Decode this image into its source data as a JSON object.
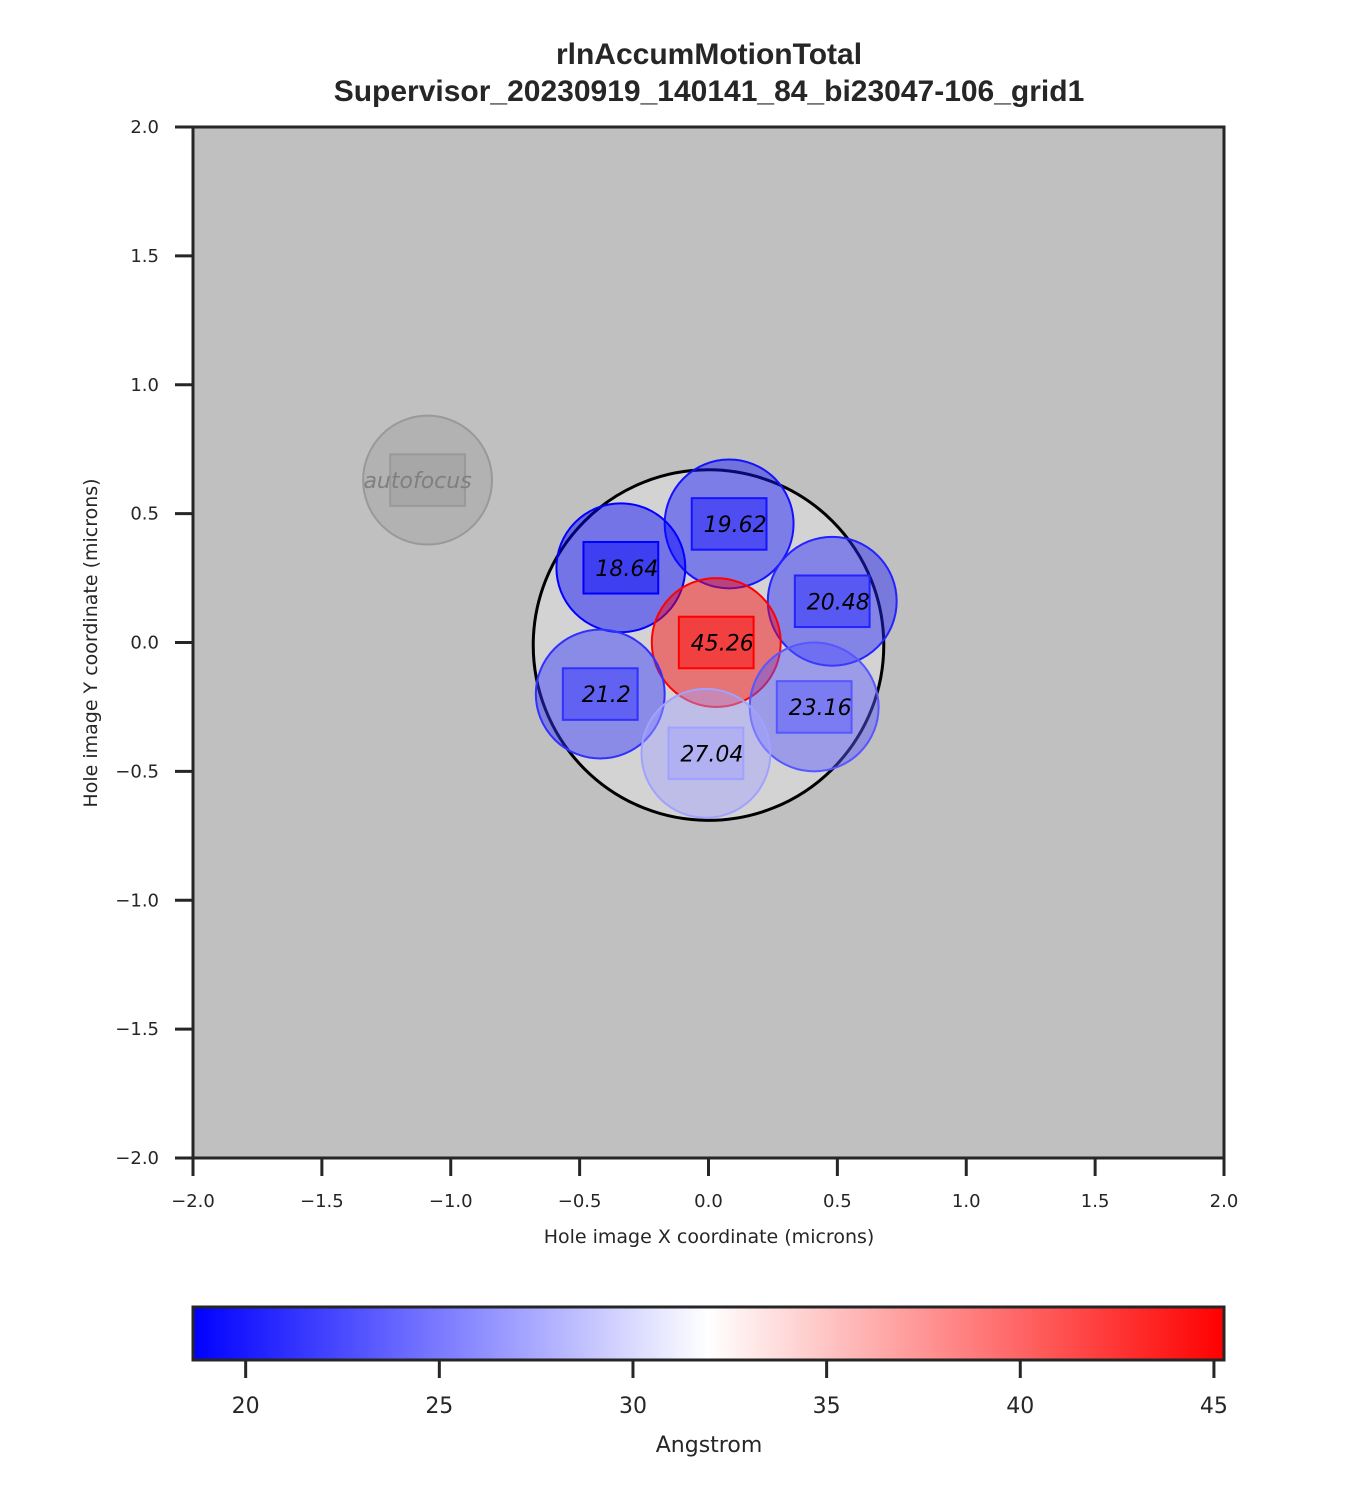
{
  "chart_data": {
    "type": "scatter",
    "title": "rlnAccumMotionTotal",
    "subtitle": "Supervisor_20230919_140141_84_bi23047-106_grid1",
    "xlabel": "Hole image X coordinate (microns)",
    "ylabel": "Hole image Y coordinate (microns)",
    "xlim": [
      -2.0,
      2.0
    ],
    "ylim": [
      -2.0,
      2.0
    ],
    "xticks": [
      "−2.0",
      "−1.5",
      "−1.0",
      "−0.5",
      "0.0",
      "0.5",
      "1.0",
      "1.5",
      "2.0"
    ],
    "yticks": [
      "2.0",
      "1.5",
      "1.0",
      "0.5",
      "0.0",
      "−0.5",
      "−1.0",
      "−1.5",
      "−2.0"
    ],
    "grid": false,
    "background_color": "#c0c0c0",
    "hole": {
      "x": 0.0,
      "y": -0.01,
      "radius": 0.68
    },
    "points": [
      {
        "label": "19.62",
        "value": 19.62,
        "x": 0.08,
        "y": 0.46
      },
      {
        "label": "18.64",
        "value": 18.64,
        "x": -0.34,
        "y": 0.29
      },
      {
        "label": "20.48",
        "value": 20.48,
        "x": 0.48,
        "y": 0.16
      },
      {
        "label": "45.26",
        "value": 45.26,
        "x": 0.03,
        "y": 0.0
      },
      {
        "label": "21.2",
        "value": 21.2,
        "x": -0.42,
        "y": -0.2
      },
      {
        "label": "23.16",
        "value": 23.16,
        "x": 0.41,
        "y": -0.25
      },
      {
        "label": "27.04",
        "value": 27.04,
        "x": -0.01,
        "y": -0.43
      }
    ],
    "autofocus": {
      "label": "autofocus",
      "x": -1.09,
      "y": 0.63
    },
    "colorbar": {
      "label": "Angstrom",
      "min": 18.64,
      "max": 45.26,
      "ticks": [
        "20",
        "25",
        "30",
        "35",
        "40",
        "45"
      ],
      "colormap": "bwr",
      "low_color": "#0000ff",
      "mid_color": "#ffffff",
      "high_color": "#ff0000"
    }
  }
}
